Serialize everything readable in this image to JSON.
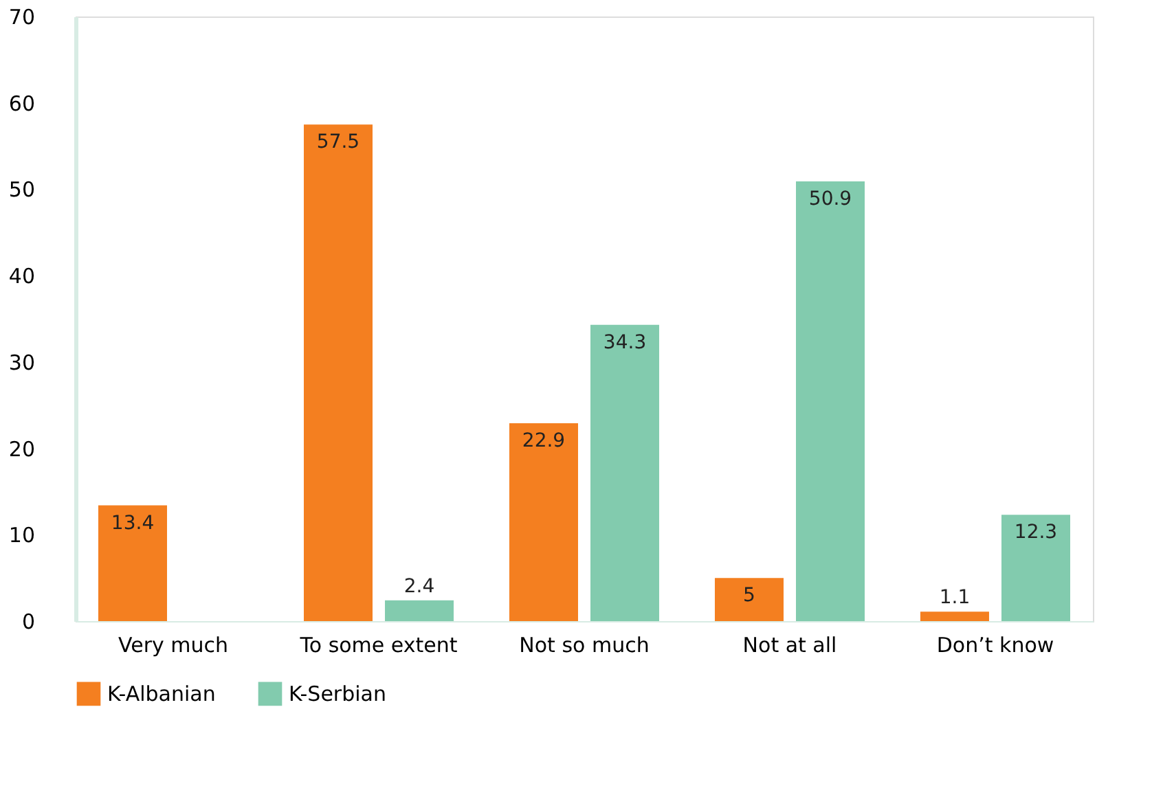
{
  "chart_data": {
    "type": "bar",
    "categories": [
      "Very much",
      "To some extent",
      "Not so much",
      "Not at all",
      "Don’t know"
    ],
    "series": [
      {
        "name": "K-Albanian",
        "color": "#f47f20",
        "values": [
          13.4,
          57.5,
          22.9,
          5,
          1.1
        ]
      },
      {
        "name": "K-Serbian",
        "color": "#82cbae",
        "values": [
          null,
          2.4,
          34.3,
          50.9,
          12.3
        ]
      }
    ],
    "ylim": [
      0,
      70
    ],
    "yticks": [
      0,
      10,
      20,
      30,
      40,
      50,
      60,
      70
    ],
    "grid": false,
    "legend": "bottom",
    "data_labels": true
  }
}
